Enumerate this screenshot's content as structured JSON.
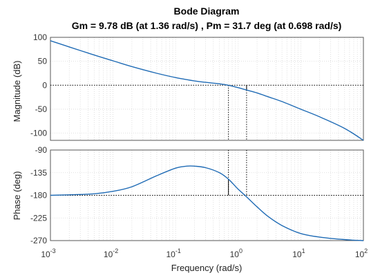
{
  "chart_data": {
    "type": "line",
    "title": "Bode Diagram",
    "subtitle": "Gm = 9.78 dB (at 1.36 rad/s) ,  Pm = 31.7 deg (at 0.698 rad/s)",
    "xlabel": "Frequency  (rad/s)",
    "xscale": "log",
    "xlim": [
      0.001,
      100
    ],
    "grid": true,
    "line_color": "#1f6bb5",
    "x_tick_labels": [
      {
        "base": "10",
        "exp": "-3"
      },
      {
        "base": "10",
        "exp": "-2"
      },
      {
        "base": "10",
        "exp": "-1"
      },
      {
        "base": "10",
        "exp": "0"
      },
      {
        "base": "10",
        "exp": "1"
      },
      {
        "base": "10",
        "exp": "2"
      }
    ],
    "margins": {
      "gain_margin_db": 9.78,
      "gain_crossover_freq": 1.36,
      "phase_margin_deg": 31.7,
      "phase_crossover_freq": 0.698
    },
    "panels": [
      {
        "name": "magnitude",
        "ylabel": "Magnitude (dB)",
        "ylim": [
          -115,
          100
        ],
        "yticks": [
          "100",
          "50",
          "0",
          "-50",
          "-100"
        ],
        "series": [
          {
            "x": [
              0.001,
              0.002,
              0.005,
              0.01,
              0.02,
              0.05,
              0.1,
              0.2,
              0.3,
              0.5,
              0.698,
              1,
              1.36,
              2,
              3,
              5,
              10,
              20,
              50,
              100
            ],
            "y": [
              93,
              80,
              63,
              51,
              39,
              25,
              16,
              9,
              6,
              3,
              0,
              -5,
              -10,
              -16,
              -24,
              -34,
              -50,
              -66,
              -90,
              -115
            ]
          }
        ]
      },
      {
        "name": "phase",
        "ylabel": "Phase (deg)",
        "ylim": [
          -270,
          -90
        ],
        "yticks": [
          "-90",
          "-135",
          "-180",
          "-225",
          "-270"
        ],
        "series": [
          {
            "x": [
              0.001,
              0.002,
              0.005,
              0.01,
              0.02,
              0.05,
              0.1,
              0.15,
              0.2,
              0.3,
              0.5,
              0.698,
              1,
              1.36,
              2,
              3,
              5,
              10,
              20,
              50,
              100
            ],
            "y": [
              -180,
              -179,
              -177,
              -172,
              -163,
              -141,
              -126,
              -122,
              -122,
              -125,
              -135,
              -148,
              -168,
              -183,
              -203,
              -222,
              -240,
              -256,
              -263,
              -268,
              -270
            ]
          }
        ]
      }
    ]
  }
}
